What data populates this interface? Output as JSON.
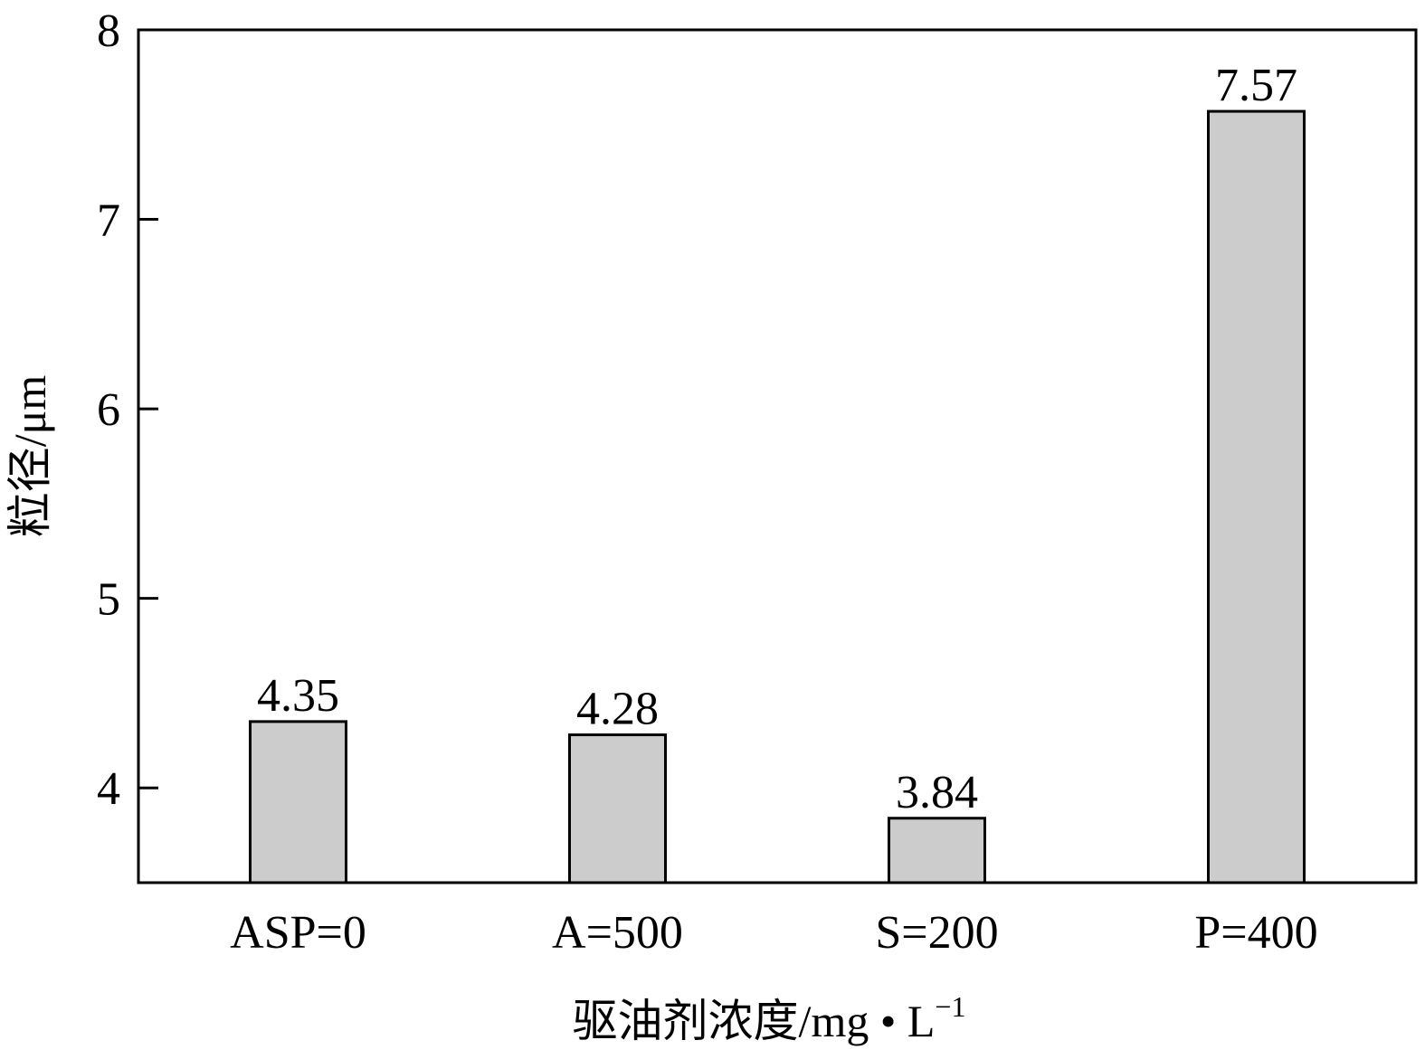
{
  "chart_data": {
    "type": "bar",
    "categories": [
      "ASP=0",
      "A=500",
      "S=200",
      "P=400"
    ],
    "values": [
      4.35,
      4.28,
      3.84,
      7.57
    ],
    "data_labels": [
      "4.35",
      "4.28",
      "3.84",
      "7.57"
    ],
    "title": "",
    "xlabel": "驱油剂浓度/mg • L",
    "xlabel_superscript": "−1",
    "ylabel": "粒径/μm",
    "ylim": [
      3.5,
      8
    ],
    "yticks": [
      4,
      5,
      6,
      7,
      8
    ],
    "ytick_labels": [
      "4",
      "5",
      "6",
      "7",
      "8"
    ],
    "grid": false,
    "legend": "none",
    "bar_color": "#cccccc",
    "edge_color": "#000000"
  }
}
